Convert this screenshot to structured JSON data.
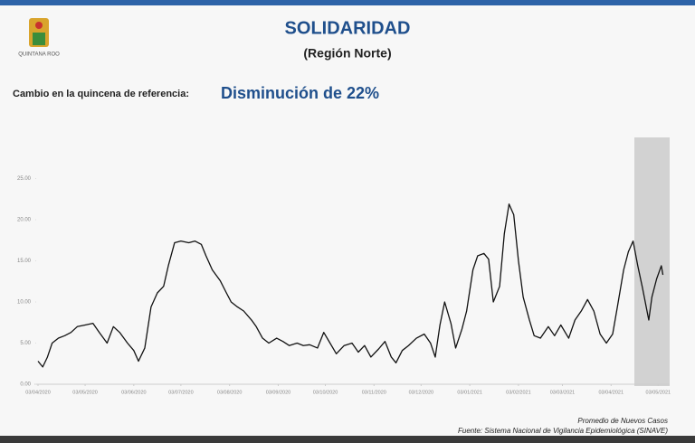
{
  "logo_text": "QUINTANA ROO",
  "chart_data": {
    "type": "line",
    "title": "SOLIDARIDAD",
    "subtitle": "(Región Norte)",
    "annotation_label": "Cambio en la quincena de referencia:",
    "annotation_value": "Disminución de 22%",
    "footnote": "Promedio de Nuevos Casos",
    "source": "Fuente: Sistema Nacional de Vigilancia Epidemiológica (SINAVE)",
    "color": "#111111",
    "grid": false,
    "xlim": [
      0,
      400
    ],
    "ylim": [
      0,
      30
    ],
    "yticks": [
      {
        "value": 0,
        "label": "0.00"
      },
      {
        "value": 5,
        "label": "5.00"
      },
      {
        "value": 10,
        "label": "10.00"
      },
      {
        "value": 15,
        "label": "15.00"
      },
      {
        "value": 20,
        "label": "20.00"
      },
      {
        "value": 25,
        "label": "25.00"
      }
    ],
    "xticks": [
      {
        "value": 0,
        "label": "03/04/2020"
      },
      {
        "value": 30,
        "label": "03/05/2020"
      },
      {
        "value": 61,
        "label": "03/06/2020"
      },
      {
        "value": 91,
        "label": "03/07/2020"
      },
      {
        "value": 122,
        "label": "03/08/2020"
      },
      {
        "value": 153,
        "label": "03/09/2020"
      },
      {
        "value": 183,
        "label": "03/10/2020"
      },
      {
        "value": 214,
        "label": "03/11/2020"
      },
      {
        "value": 244,
        "label": "03/12/2020"
      },
      {
        "value": 275,
        "label": "03/01/2021"
      },
      {
        "value": 306,
        "label": "03/02/2021"
      },
      {
        "value": 334,
        "label": "03/03/2021"
      },
      {
        "value": 365,
        "label": "03/04/2021"
      },
      {
        "value": 395,
        "label": "03/05/2021"
      }
    ],
    "x": [
      0,
      3,
      6,
      9,
      13,
      17,
      21,
      25,
      30,
      35,
      39,
      44,
      48,
      52,
      57,
      61,
      64,
      68,
      72,
      76,
      80,
      83,
      87,
      91,
      96,
      100,
      104,
      107,
      111,
      116,
      120,
      123,
      127,
      131,
      136,
      139,
      143,
      147,
      152,
      156,
      160,
      165,
      169,
      173,
      178,
      182,
      186,
      190,
      195,
      200,
      204,
      208,
      212,
      217,
      221,
      225,
      228,
      232,
      236,
      241,
      246,
      250,
      253,
      256,
      259,
      263,
      266,
      270,
      273,
      277,
      280,
      284,
      287,
      290,
      294,
      297,
      300,
      303,
      306,
      309,
      313,
      316,
      320,
      325,
      329,
      333,
      338,
      342,
      346,
      350,
      354,
      358,
      362,
      366,
      369,
      373,
      376,
      379,
      382,
      385,
      389,
      391,
      394,
      397,
      398
    ],
    "values": [
      2.8,
      2.1,
      3.3,
      5.0,
      5.6,
      5.9,
      6.3,
      7.0,
      7.2,
      7.4,
      6.3,
      5.0,
      7.0,
      6.3,
      5.0,
      4.1,
      2.8,
      4.4,
      9.4,
      11.1,
      11.9,
      14.4,
      17.2,
      17.4,
      17.2,
      17.4,
      17.0,
      15.6,
      13.9,
      12.6,
      11.1,
      10.0,
      9.4,
      8.9,
      7.8,
      7.0,
      5.6,
      5.0,
      5.6,
      5.2,
      4.7,
      5.0,
      4.7,
      4.8,
      4.4,
      6.3,
      5.0,
      3.7,
      4.7,
      5.0,
      3.9,
      4.7,
      3.3,
      4.3,
      5.2,
      3.3,
      2.6,
      4.1,
      4.7,
      5.6,
      6.1,
      5.0,
      3.3,
      7.2,
      10.0,
      7.4,
      4.4,
      6.7,
      8.9,
      13.9,
      15.6,
      15.9,
      15.2,
      10.0,
      11.9,
      18.3,
      21.9,
      20.6,
      15.0,
      10.6,
      7.8,
      5.9,
      5.6,
      7.0,
      5.9,
      7.2,
      5.6,
      7.8,
      8.9,
      10.3,
      8.9,
      6.1,
      5.0,
      6.1,
      9.4,
      13.9,
      16.1,
      17.4,
      14.4,
      11.7,
      7.8,
      10.6,
      12.8,
      14.4,
      13.3
    ]
  }
}
